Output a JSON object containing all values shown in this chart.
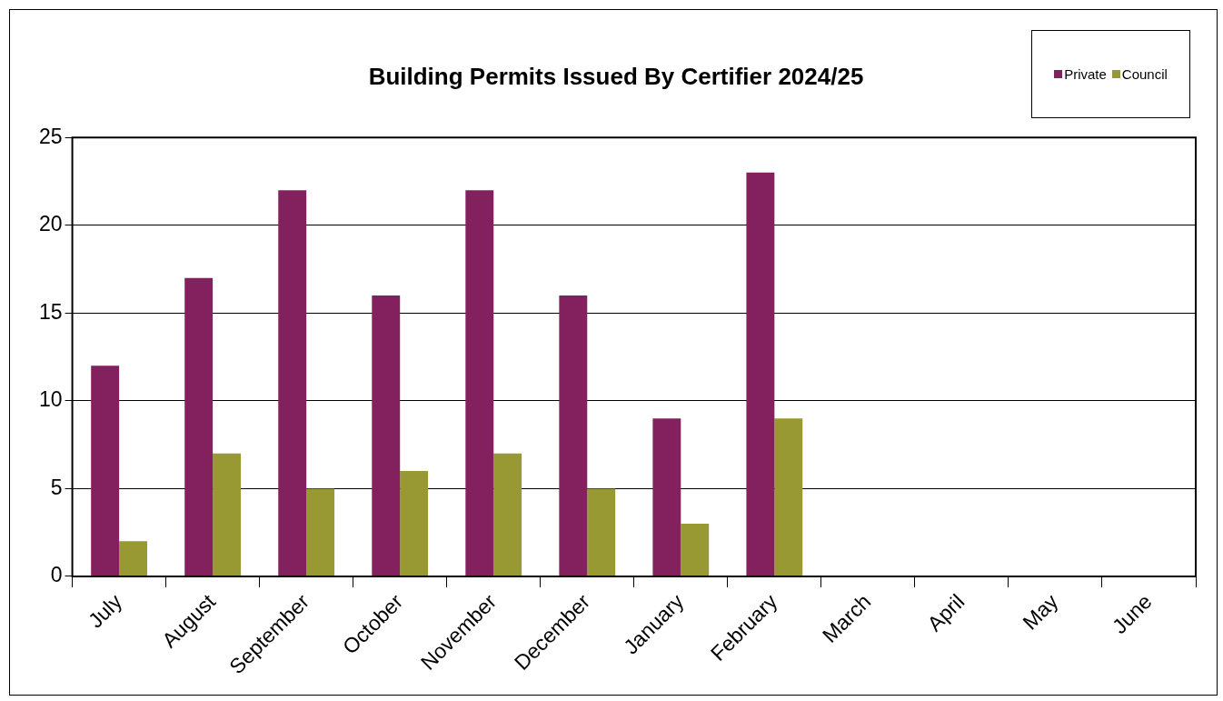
{
  "chart_data": {
    "type": "bar",
    "title": "Building Permits Issued By Certifier 2024/25",
    "categories": [
      "July",
      "August",
      "September",
      "October",
      "November",
      "December",
      "January",
      "February",
      "March",
      "April",
      "May",
      "June"
    ],
    "series": [
      {
        "name": "Private",
        "color": "#82215e",
        "values": [
          12,
          17,
          22,
          16,
          22,
          16,
          9,
          23,
          null,
          null,
          null,
          null
        ]
      },
      {
        "name": "Council",
        "color": "#999933",
        "values": [
          2,
          7,
          5,
          6,
          7,
          5,
          3,
          9,
          null,
          null,
          null,
          null
        ]
      }
    ],
    "ylim": [
      0,
      25
    ],
    "yticks": [
      0,
      5,
      10,
      15,
      20,
      25
    ],
    "grid": "y",
    "legend": "top right"
  }
}
